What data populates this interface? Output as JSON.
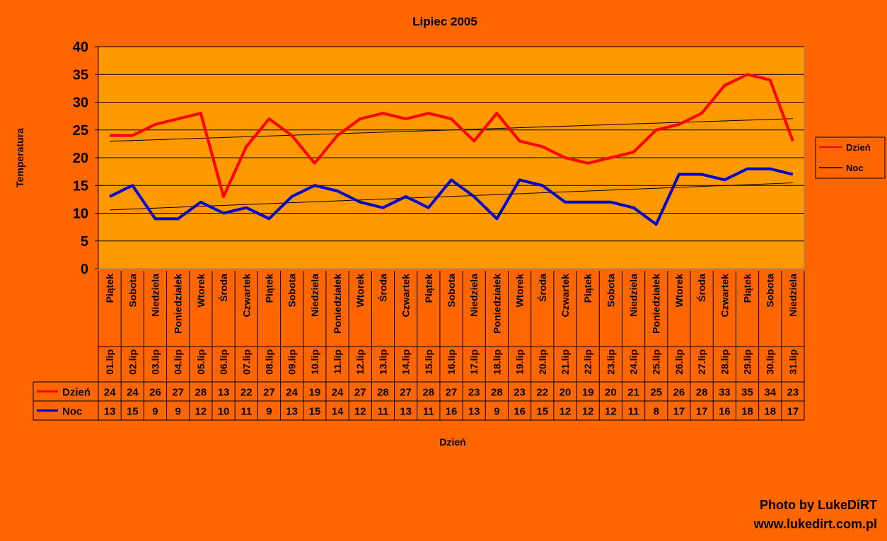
{
  "chart_data": {
    "type": "line",
    "title": "Lipiec 2005",
    "xlabel": "Dzień",
    "ylabel": "Temperatura",
    "ylim": [
      0,
      40
    ],
    "yticks": [
      0,
      5,
      10,
      15,
      20,
      25,
      30,
      35,
      40
    ],
    "grid": true,
    "legend": "right",
    "weekdays": [
      "Piątek",
      "Sobota",
      "Niedziela",
      "Poniedziałek",
      "Wtorek",
      "Środa",
      "Czwartek",
      "Piątek",
      "Sobota",
      "Niedziela",
      "Poniedziałek",
      "Wtorek",
      "Środa",
      "Czwartek",
      "Piątek",
      "Sobota",
      "Niedziela",
      "Poniedziałek",
      "Wtorek",
      "Środa",
      "Czwartek",
      "Piątek",
      "Sobota",
      "Niedziela",
      "Poniedziałek",
      "Wtorek",
      "Środa",
      "Czwartek",
      "Piątek",
      "Sobota",
      "Niedziela"
    ],
    "categories": [
      "01.lip",
      "02.lip",
      "03.lip",
      "04.lip",
      "05.lip",
      "06.lip",
      "07.lip",
      "08.lip",
      "09.lip",
      "10.lip",
      "11.lip",
      "12.lip",
      "13.lip",
      "14.lip",
      "15.lip",
      "16.lip",
      "17.lip",
      "18.lip",
      "19.lip",
      "20.lip",
      "21.lip",
      "22.lip",
      "23.lip",
      "24.lip",
      "25.lip",
      "26.lip",
      "27.lip",
      "28.lip",
      "29.lip",
      "30.lip",
      "31.lip"
    ],
    "series": [
      {
        "name": "Dzień",
        "color": "#FF0000",
        "trendline": "linear",
        "values": [
          24,
          24,
          26,
          27,
          28,
          13,
          22,
          27,
          24,
          19,
          24,
          27,
          28,
          27,
          28,
          27,
          23,
          28,
          23,
          22,
          20,
          19,
          20,
          21,
          25,
          26,
          28,
          33,
          35,
          34,
          23
        ]
      },
      {
        "name": "Noc",
        "color": "#0000CC",
        "trendline": "linear",
        "values": [
          13,
          15,
          9,
          9,
          12,
          10,
          11,
          9,
          13,
          15,
          14,
          12,
          11,
          13,
          11,
          16,
          13,
          9,
          16,
          15,
          12,
          12,
          12,
          11,
          8,
          17,
          17,
          16,
          18,
          18,
          17
        ]
      }
    ]
  },
  "credit": {
    "line1": "Photo by LukeDiRT",
    "line2": "www.lukedirt.com.pl"
  },
  "colors": {
    "background": "#FF6600",
    "plot_area": "#FF9900"
  }
}
